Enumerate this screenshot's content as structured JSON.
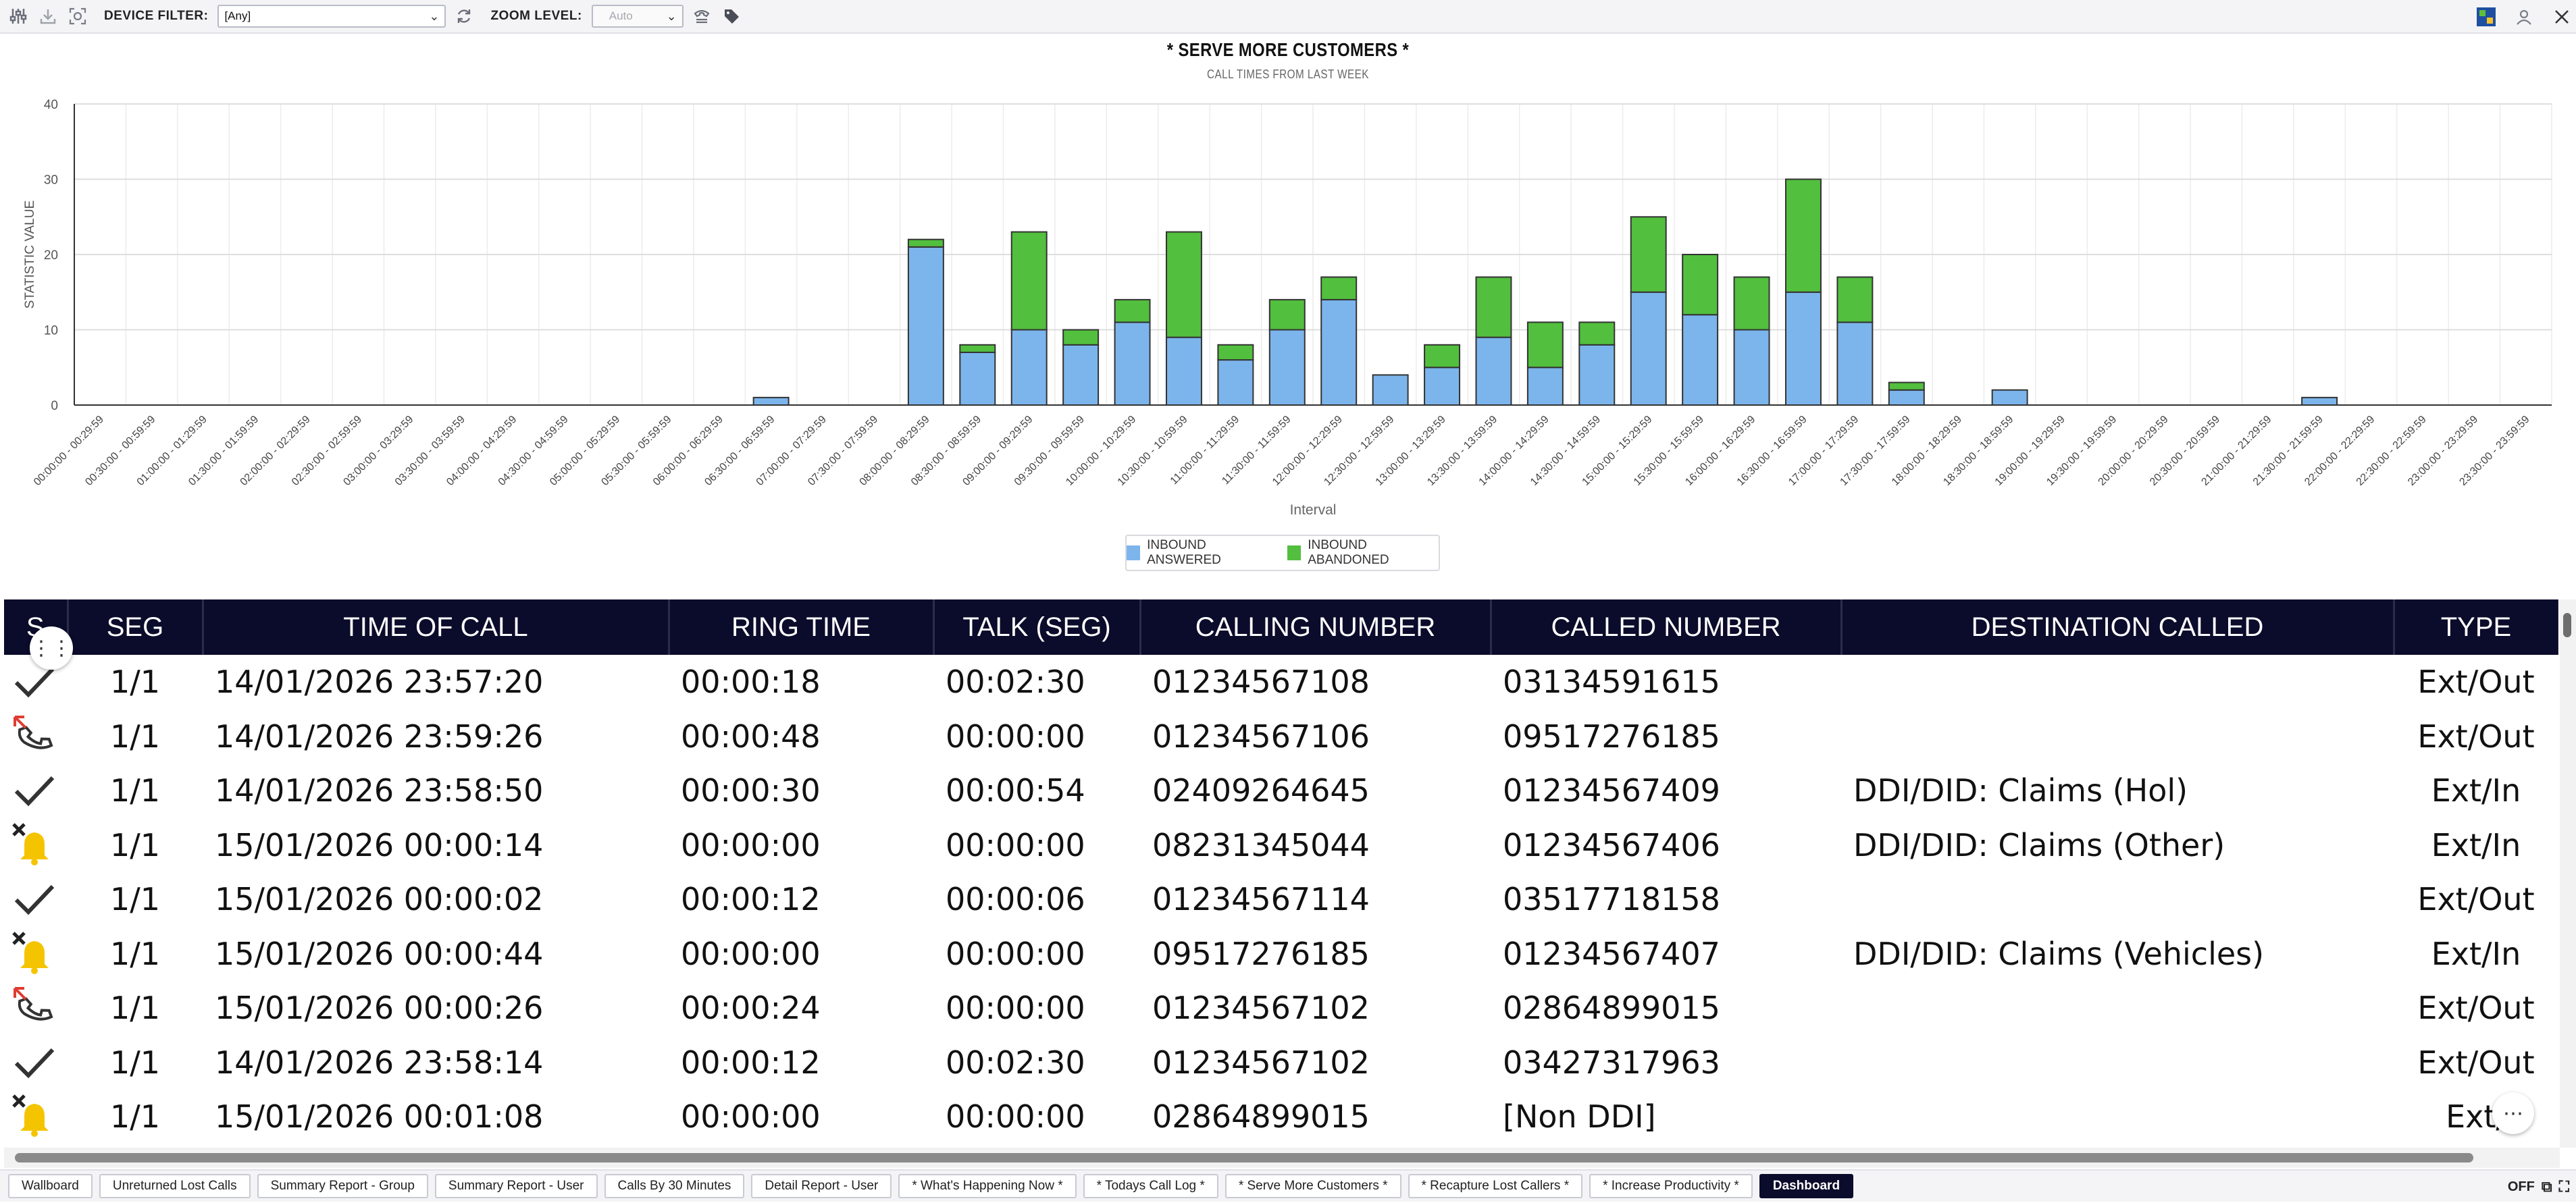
{
  "toolbar": {
    "device_filter_label": "DEVICE FILTER:",
    "device_filter_value": "[Any]",
    "zoom_label": "ZOOM LEVEL:",
    "zoom_value": "Auto"
  },
  "chart_data": {
    "type": "bar",
    "stacked": true,
    "title": "* SERVE MORE CUSTOMERS *",
    "subtitle": "CALL TIMES FROM LAST WEEK",
    "xlabel": "Interval",
    "ylabel": "STATISTIC VALUE",
    "ylim": [
      0,
      40
    ],
    "yticks": [
      0,
      10,
      20,
      30,
      40
    ],
    "grid": true,
    "legend_position": "bottom-center",
    "categories": [
      "00:00:00 - 00:29:59",
      "00:30:00 - 00:59:59",
      "01:00:00 - 01:29:59",
      "01:30:00 - 01:59:59",
      "02:00:00 - 02:29:59",
      "02:30:00 - 02:59:59",
      "03:00:00 - 03:29:59",
      "03:30:00 - 03:59:59",
      "04:00:00 - 04:29:59",
      "04:30:00 - 04:59:59",
      "05:00:00 - 05:29:59",
      "05:30:00 - 05:59:59",
      "06:00:00 - 06:29:59",
      "06:30:00 - 06:59:59",
      "07:00:00 - 07:29:59",
      "07:30:00 - 07:59:59",
      "08:00:00 - 08:29:59",
      "08:30:00 - 08:59:59",
      "09:00:00 - 09:29:59",
      "09:30:00 - 09:59:59",
      "10:00:00 - 10:29:59",
      "10:30:00 - 10:59:59",
      "11:00:00 - 11:29:59",
      "11:30:00 - 11:59:59",
      "12:00:00 - 12:29:59",
      "12:30:00 - 12:59:59",
      "13:00:00 - 13:29:59",
      "13:30:00 - 13:59:59",
      "14:00:00 - 14:29:59",
      "14:30:00 - 14:59:59",
      "15:00:00 - 15:29:59",
      "15:30:00 - 15:59:59",
      "16:00:00 - 16:29:59",
      "16:30:00 - 16:59:59",
      "17:00:00 - 17:29:59",
      "17:30:00 - 17:59:59",
      "18:00:00 - 18:29:59",
      "18:30:00 - 18:59:59",
      "19:00:00 - 19:29:59",
      "19:30:00 - 19:59:59",
      "20:00:00 - 20:29:59",
      "20:30:00 - 20:59:59",
      "21:00:00 - 21:29:59",
      "21:30:00 - 21:59:59",
      "22:00:00 - 22:29:59",
      "22:30:00 - 22:59:59",
      "23:00:00 - 23:29:59",
      "23:30:00 - 23:59:59"
    ],
    "series": [
      {
        "name": "INBOUND ANSWERED",
        "color": "#7cb5ec",
        "values": [
          0,
          0,
          0,
          0,
          0,
          0,
          0,
          0,
          0,
          0,
          0,
          0,
          0,
          1,
          0,
          0,
          21,
          7,
          10,
          8,
          11,
          9,
          6,
          10,
          14,
          4,
          5,
          9,
          5,
          8,
          15,
          12,
          10,
          15,
          11,
          2,
          0,
          2,
          0,
          0,
          0,
          0,
          0,
          1,
          0,
          0,
          0,
          0
        ]
      },
      {
        "name": "INBOUND ABANDONED",
        "color": "#52bf3e",
        "values": [
          0,
          0,
          0,
          0,
          0,
          0,
          0,
          0,
          0,
          0,
          0,
          0,
          0,
          0,
          0,
          0,
          1,
          1,
          13,
          2,
          3,
          14,
          2,
          4,
          3,
          0,
          3,
          8,
          6,
          3,
          10,
          8,
          7,
          15,
          6,
          1,
          0,
          0,
          0,
          0,
          0,
          0,
          0,
          0,
          0,
          0,
          0,
          0
        ]
      }
    ]
  },
  "table": {
    "columns": [
      "S",
      "SEG",
      "TIME OF CALL",
      "RING TIME",
      "TALK (SEG)",
      "CALLING NUMBER",
      "CALLED NUMBER",
      "DESTINATION CALLED",
      "TYPE"
    ],
    "rows": [
      {
        "status": "check-icon",
        "seg": "1/1",
        "time": "14/01/2026 23:57:20",
        "ring": "00:00:18",
        "talk": "00:02:30",
        "calling": "01234567108",
        "called": "03134591615",
        "dest": "",
        "type": "Ext/Out"
      },
      {
        "status": "failed-call-icon",
        "seg": "1/1",
        "time": "14/01/2026 23:59:26",
        "ring": "00:00:48",
        "talk": "00:00:00",
        "calling": "01234567106",
        "called": "09517276185",
        "dest": "",
        "type": "Ext/Out"
      },
      {
        "status": "check-icon",
        "seg": "1/1",
        "time": "14/01/2026 23:58:50",
        "ring": "00:00:30",
        "talk": "00:00:54",
        "calling": "02409264645",
        "called": "01234567409",
        "dest": "DDI/DID: Claims (Hol)",
        "type": "Ext/In"
      },
      {
        "status": "missed-bell-icon",
        "seg": "1/1",
        "time": "15/01/2026 00:00:14",
        "ring": "00:00:00",
        "talk": "00:00:00",
        "calling": "08231345044",
        "called": "01234567406",
        "dest": "DDI/DID: Claims (Other)",
        "type": "Ext/In"
      },
      {
        "status": "check-icon",
        "seg": "1/1",
        "time": "15/01/2026 00:00:02",
        "ring": "00:00:12",
        "talk": "00:00:06",
        "calling": "01234567114",
        "called": "03517718158",
        "dest": "",
        "type": "Ext/Out"
      },
      {
        "status": "missed-bell-icon",
        "seg": "1/1",
        "time": "15/01/2026 00:00:44",
        "ring": "00:00:00",
        "talk": "00:00:00",
        "calling": "09517276185",
        "called": "01234567407",
        "dest": "DDI/DID: Claims (Vehicles)",
        "type": "Ext/In"
      },
      {
        "status": "failed-call-icon",
        "seg": "1/1",
        "time": "15/01/2026 00:00:26",
        "ring": "00:00:24",
        "talk": "00:00:00",
        "calling": "01234567102",
        "called": "02864899015",
        "dest": "",
        "type": "Ext/Out"
      },
      {
        "status": "check-icon",
        "seg": "1/1",
        "time": "14/01/2026 23:58:14",
        "ring": "00:00:12",
        "talk": "00:02:30",
        "calling": "01234567102",
        "called": "03427317963",
        "dest": "",
        "type": "Ext/Out"
      },
      {
        "status": "missed-bell-icon",
        "seg": "1/1",
        "time": "15/01/2026 00:01:08",
        "ring": "00:00:00",
        "talk": "00:00:00",
        "calling": "02864899015",
        "called": "[Non DDI]",
        "dest": "",
        "type": "Ext/"
      }
    ]
  },
  "tabs": [
    {
      "label": "Wallboard",
      "active": false
    },
    {
      "label": "Unreturned Lost Calls",
      "active": false
    },
    {
      "label": "Summary Report - Group",
      "active": false
    },
    {
      "label": "Summary Report - User",
      "active": false
    },
    {
      "label": "Calls By 30 Minutes",
      "active": false
    },
    {
      "label": "Detail Report - User",
      "active": false
    },
    {
      "label": "* What's Happening Now *",
      "active": false
    },
    {
      "label": "* Todays Call Log *",
      "active": false
    },
    {
      "label": "* Serve More Customers *",
      "active": false
    },
    {
      "label": "* Recapture Lost Callers *",
      "active": false
    },
    {
      "label": "* Increase Productivity *",
      "active": false
    },
    {
      "label": "Dashboard",
      "active": true
    }
  ],
  "status_bar": {
    "toggle_label": "OFF"
  }
}
